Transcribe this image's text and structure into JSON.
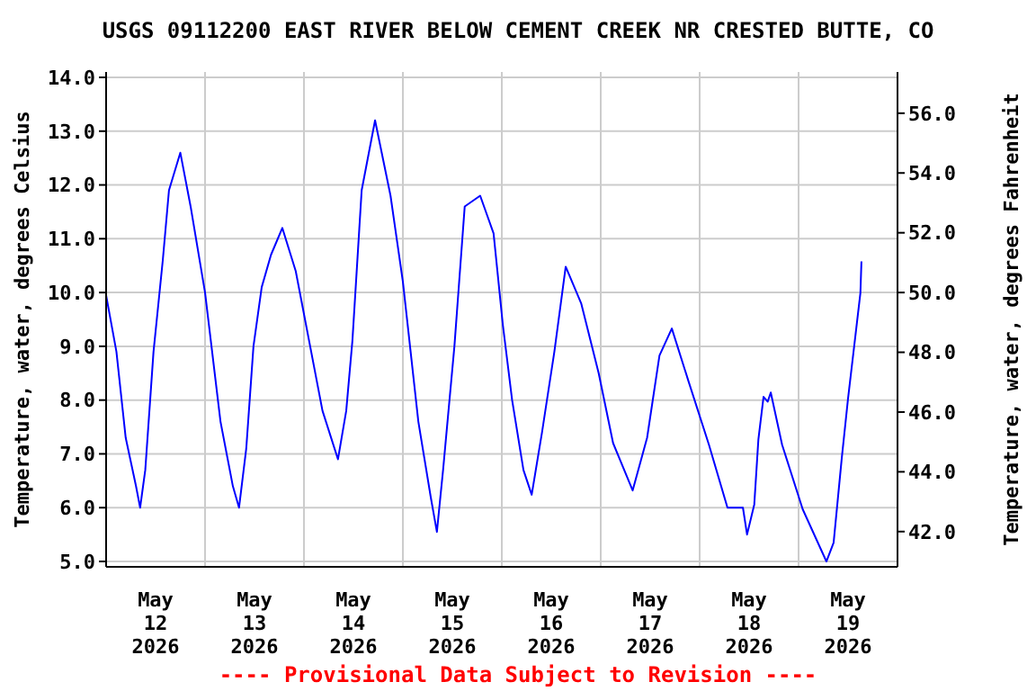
{
  "chart_data": {
    "type": "line",
    "title": "USGS 09112200 EAST RIVER BELOW CEMENT CREEK NR CRESTED BUTTE, CO",
    "ylabel": "Temperature, water, degrees Celsius",
    "y2label": "Temperature, water, degrees Fahrenheit",
    "annotations": [
      "---- Provisional Data Subject to Revision ----"
    ],
    "x": [
      "2026-05-12T00:00",
      "2026-05-12T02:30",
      "2026-05-12T04:45",
      "2026-05-12T07:15",
      "2026-05-12T08:15",
      "2026-05-12T09:30",
      "2026-05-12T11:30",
      "2026-05-12T13:45",
      "2026-05-12T15:15",
      "2026-05-12T18:00",
      "2026-05-12T20:30",
      "2026-05-13T00:00",
      "2026-05-13T03:45",
      "2026-05-13T06:45",
      "2026-05-13T08:15",
      "2026-05-13T10:00",
      "2026-05-13T11:45",
      "2026-05-13T13:45",
      "2026-05-13T16:00",
      "2026-05-13T18:45",
      "2026-05-13T22:00",
      "2026-05-14T01:45",
      "2026-05-14T04:30",
      "2026-05-14T08:15",
      "2026-05-14T10:15",
      "2026-05-14T11:45",
      "2026-05-14T14:00",
      "2026-05-14T17:15",
      "2026-05-14T21:00",
      "2026-05-15T00:00",
      "2026-05-15T03:45",
      "2026-05-15T06:45",
      "2026-05-15T08:15",
      "2026-05-15T09:45",
      "2026-05-15T12:30",
      "2026-05-15T15:00",
      "2026-05-15T18:45",
      "2026-05-15T22:00",
      "2026-05-16T00:15",
      "2026-05-16T02:30",
      "2026-05-16T05:15",
      "2026-05-16T07:15",
      "2026-05-16T09:45",
      "2026-05-16T12:45",
      "2026-05-16T15:30",
      "2026-05-16T19:15",
      "2026-05-16T23:30",
      "2026-05-17T03:00",
      "2026-05-17T07:45",
      "2026-05-17T11:15",
      "2026-05-17T14:15",
      "2026-05-17T17:15",
      "2026-05-17T21:15",
      "2026-05-18T02:15",
      "2026-05-18T06:45",
      "2026-05-18T10:30",
      "2026-05-18T11:30",
      "2026-05-18T13:15",
      "2026-05-18T14:15",
      "2026-05-18T15:30",
      "2026-05-18T16:30",
      "2026-05-18T17:15",
      "2026-05-18T20:00",
      "2026-05-19T01:00",
      "2026-05-19T06:45",
      "2026-05-19T08:30",
      "2026-05-19T10:30",
      "2026-05-19T12:00",
      "2026-05-19T15:00",
      "2026-05-19T15:15"
    ],
    "series": [
      {
        "color": "#0000ff",
        "values": [
          9.95,
          8.9,
          7.3,
          6.4,
          6.0,
          6.7,
          8.9,
          10.6,
          11.9,
          12.6,
          11.6,
          10.0,
          7.6,
          6.4,
          6.0,
          7.1,
          9.0,
          10.1,
          10.7,
          11.2,
          10.4,
          8.9,
          7.8,
          6.9,
          7.8,
          9.1,
          11.9,
          13.2,
          11.8,
          10.2,
          7.6,
          6.2,
          5.55,
          6.7,
          9.0,
          11.6,
          11.8,
          11.1,
          9.4,
          8.0,
          6.7,
          6.24,
          7.4,
          8.9,
          10.48,
          9.8,
          8.5,
          7.2,
          6.32,
          7.3,
          8.83,
          9.33,
          8.36,
          7.17,
          6.0,
          6.0,
          5.5,
          6.06,
          7.27,
          8.06,
          7.97,
          8.14,
          7.17,
          5.97,
          5.0,
          5.35,
          6.94,
          8.03,
          9.99,
          10.58
        ]
      }
    ],
    "xlim": [
      "2026-05-12T00:00",
      "2026-05-20T00:00"
    ],
    "xticks": [
      {
        "value": "2026-05-12T00:00",
        "label": null
      },
      {
        "value": "2026-05-12T12:00",
        "label": "May\n12\n2026"
      },
      {
        "value": "2026-05-13T00:00",
        "label": null
      },
      {
        "value": "2026-05-13T12:00",
        "label": "May\n13\n2026"
      },
      {
        "value": "2026-05-14T00:00",
        "label": null
      },
      {
        "value": "2026-05-14T12:00",
        "label": "May\n14\n2026"
      },
      {
        "value": "2026-05-15T00:00",
        "label": null
      },
      {
        "value": "2026-05-15T12:00",
        "label": "May\n15\n2026"
      },
      {
        "value": "2026-05-16T00:00",
        "label": null
      },
      {
        "value": "2026-05-16T12:00",
        "label": "May\n16\n2026"
      },
      {
        "value": "2026-05-17T00:00",
        "label": null
      },
      {
        "value": "2026-05-17T12:00",
        "label": "May\n17\n2026"
      },
      {
        "value": "2026-05-18T00:00",
        "label": null
      },
      {
        "value": "2026-05-18T12:00",
        "label": "May\n18\n2026"
      },
      {
        "value": "2026-05-19T00:00",
        "label": null
      },
      {
        "value": "2026-05-19T12:00",
        "label": "May\n19\n2026"
      },
      {
        "value": "2026-05-20T00:00",
        "label": null
      }
    ],
    "ylim": [
      4.9,
      14.1
    ],
    "yticks": [
      {
        "value": 5,
        "label": "5.0"
      },
      {
        "value": 6,
        "label": "6.0"
      },
      {
        "value": 7,
        "label": "7.0"
      },
      {
        "value": 8,
        "label": "8.0"
      },
      {
        "value": 9,
        "label": "9.0"
      },
      {
        "value": 10,
        "label": "10.0"
      },
      {
        "value": 11,
        "label": "11.0"
      },
      {
        "value": 12,
        "label": "12.0"
      },
      {
        "value": 13,
        "label": "13.0"
      },
      {
        "value": 14,
        "label": "14.0"
      }
    ],
    "y2lim": [
      40.82,
      57.38
    ],
    "y2ticks": [
      {
        "value": 42,
        "label": "42.0"
      },
      {
        "value": 44,
        "label": "44.0"
      },
      {
        "value": 46,
        "label": "46.0"
      },
      {
        "value": 48,
        "label": "48.0"
      },
      {
        "value": 50,
        "label": "50.0"
      },
      {
        "value": 52,
        "label": "52.0"
      },
      {
        "value": 54,
        "label": "54.0"
      },
      {
        "value": 56,
        "label": "56.0"
      }
    ],
    "grid": true
  }
}
